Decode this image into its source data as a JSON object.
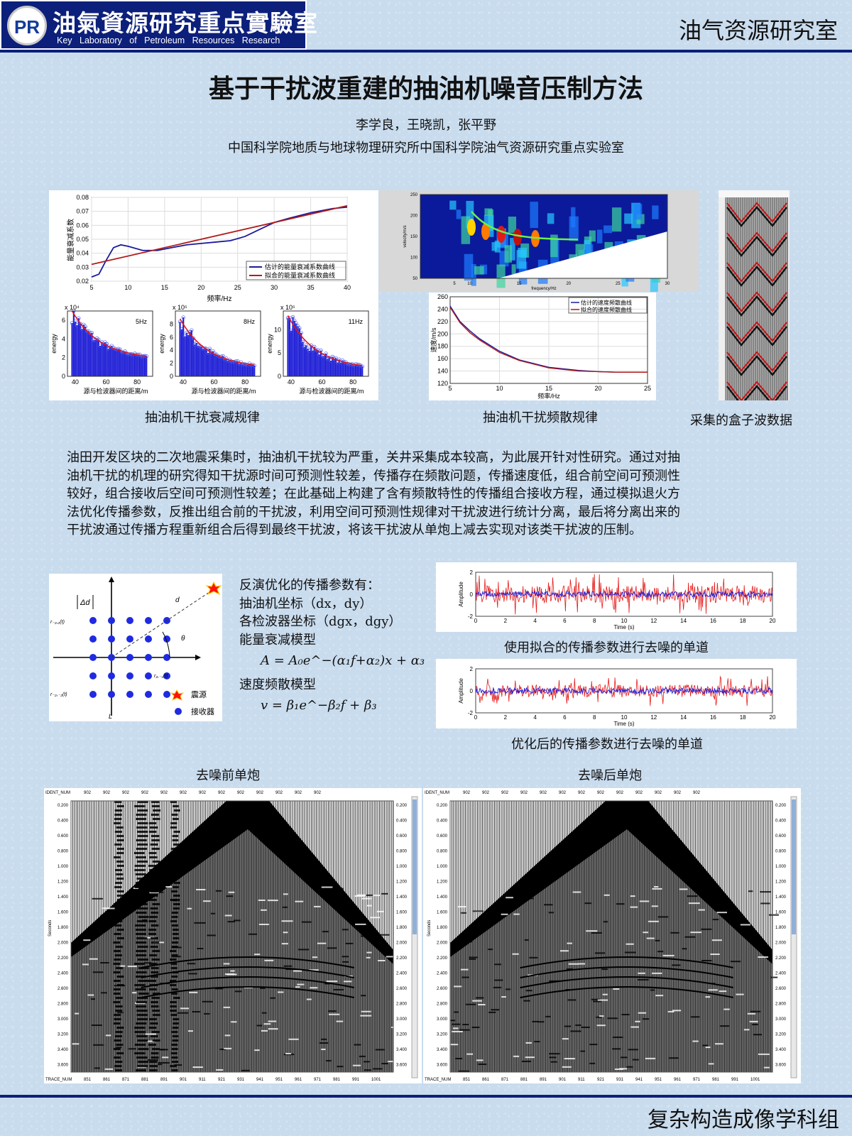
{
  "header": {
    "logo_mark": "PR",
    "logo_cn": "油氣資源研究重点實驗室",
    "logo_en": "Key Laboratory of Petroleum Resources Research",
    "org": "油气资源研究室"
  },
  "paper": {
    "title": "基于干扰波重建的抽油机噪音压制方法",
    "authors": "李学良，王晓凯，张平野",
    "affiliation": "中国科学院地质与地球物理研究所中国科学院油气资源研究重点实验室"
  },
  "figures": {
    "attenuation_caption": "抽油机干扰衰减规律",
    "dispersion_caption": "抽油机干扰频散规律",
    "box_caption": "采集的盒子波数据",
    "denoise1_caption": "使用拟合的传播参数进行去噪的单道",
    "denoise2_caption": "优化后的传播参数进行去噪的单道",
    "before_caption": "去噪前单炮",
    "after_caption": "去噪后单炮",
    "legend_source": "震源",
    "legend_receiver": "接收器",
    "geom_delta": "Δd",
    "geom_d": "d",
    "geom_theta": "θ",
    "geom_L": "L",
    "geom_r1": "r₋₂,₂(t)",
    "geom_r2": "r₂,₋₁(t)",
    "geom_r3": "r₋₂,₋₂(t)"
  },
  "abstract": [
    "油田开发区块的二次地震采集时，抽油机干扰较为严重，关井采集成本较高，为此展开针对性研究。通过对抽",
    "油机干扰的机理的研究得知干扰源时间可预测性较差，传播存在频散问题，传播速度低，组合前空间可预测性",
    "较好，组合接收后空间可预测性较差；在此基础上构建了含有频散特性的传播组合接收方程，通过模拟退火方",
    "法优化传播参数，反推出组合前的干扰波，利用空间可预测性规律对干扰波进行统计分离，最后将分离出来的",
    "干扰波通过传播方程重新组合后得到最终干扰波，将该干扰波从单炮上减去实现对该类干扰波的压制。"
  ],
  "params": {
    "intro": "反演优化的传播参数有：",
    "p1": "抽油机坐标（dx，dy）",
    "p2": "各检波器坐标（dgx，dgy）",
    "p3": "能量衰减模型",
    "f1": "A = A₀e^−(α₁f+α₂)x + α₃",
    "p4": "速度频散模型",
    "f2": "v = β₁e^−β₂f + β₃"
  },
  "footer": {
    "group": "复杂构造成像学科组"
  },
  "chart_data": [
    {
      "type": "line",
      "ylabel": "能量衰减系数",
      "xlabel": "频率/Hz",
      "xlim": [
        5,
        40
      ],
      "ylim": [
        0.02,
        0.08
      ],
      "x_ticks": [
        5,
        10,
        15,
        20,
        25,
        30,
        35,
        40
      ],
      "y_ticks": [
        0.02,
        0.03,
        0.04,
        0.05,
        0.06,
        0.07,
        0.08
      ],
      "legend": "bottom-right",
      "series": [
        {
          "name": "估计的能量衰减系数曲线",
          "color": "#1a1a9c",
          "x": [
            5,
            6,
            7,
            8,
            9,
            10,
            12,
            14,
            16,
            18,
            20,
            22,
            24,
            26,
            28,
            30,
            32,
            35,
            38,
            40
          ],
          "y": [
            0.023,
            0.025,
            0.035,
            0.044,
            0.046,
            0.045,
            0.042,
            0.042,
            0.044,
            0.046,
            0.047,
            0.048,
            0.049,
            0.052,
            0.057,
            0.062,
            0.065,
            0.069,
            0.072,
            0.073
          ]
        },
        {
          "name": "拟合的能量衰减系数曲线",
          "color": "#b01c1c",
          "x": [
            5,
            40
          ],
          "y": [
            0.032,
            0.074
          ]
        }
      ]
    },
    {
      "type": "bar",
      "xlabel": "源与检波器间的距离/m",
      "ylabel": "energy",
      "label": "5Hz",
      "exponent": "x 10⁴",
      "ylim": [
        0,
        7
      ],
      "y_ticks": [
        0,
        2,
        4,
        6
      ],
      "x_ticks": [
        40,
        60,
        80
      ],
      "start": 7,
      "end": 1.8
    },
    {
      "type": "bar",
      "xlabel": "源与检波器间的距离/m",
      "ylabel": "energy",
      "label": "8Hz",
      "exponent": "x 10⁵",
      "ylim": [
        0,
        10
      ],
      "y_ticks": [
        0,
        2,
        4,
        6,
        8
      ],
      "x_ticks": [
        40,
        60,
        80
      ],
      "start": 8.8,
      "end": 1.2
    },
    {
      "type": "bar",
      "xlabel": "源与检波器间的距离/m",
      "ylabel": "energy",
      "label": "11Hz",
      "exponent": "x 10⁵",
      "ylim": [
        0,
        14
      ],
      "y_ticks": [
        0,
        5,
        10
      ],
      "x_ticks": [
        40,
        60,
        80
      ],
      "start": 13,
      "end": 1.5
    },
    {
      "type": "line",
      "ylabel": "速度/m/s",
      "xlabel": "频率/Hz",
      "xlim": [
        5,
        25
      ],
      "ylim": [
        120,
        260
      ],
      "x_ticks": [
        5,
        10,
        15,
        20,
        25
      ],
      "y_ticks": [
        120,
        140,
        160,
        180,
        200,
        220,
        240,
        260
      ],
      "legend": "top-right",
      "series": [
        {
          "name": "估计的速度频散曲线",
          "color": "#1a1a9c",
          "x": [
            5,
            6,
            7,
            8,
            10,
            12,
            15,
            18,
            20,
            22,
            25
          ],
          "y": [
            245,
            220,
            205,
            192,
            172,
            158,
            146,
            141,
            139,
            138,
            138
          ]
        },
        {
          "name": "拟合的速度频散曲线",
          "color": "#b01c1c",
          "x": [
            5,
            6,
            7,
            8,
            10,
            12,
            15,
            18,
            20,
            22,
            25
          ],
          "y": [
            243,
            218,
            202,
            190,
            170,
            157,
            145,
            140,
            139,
            138,
            138
          ]
        }
      ]
    },
    {
      "type": "heatmap",
      "ylabel": "velocity/m/s",
      "xlabel": "frequency/Hz",
      "x_ticks": [
        5,
        10,
        15,
        20,
        25,
        30
      ],
      "y_ticks": [
        50,
        100,
        150,
        200,
        250
      ]
    },
    {
      "type": "line",
      "ylabel": "Amplitude",
      "xlabel": "Time (s)",
      "xlim": [
        0,
        20
      ],
      "ylim": [
        -2,
        2
      ],
      "x_ticks": [
        0,
        2,
        4,
        6,
        8,
        10,
        12,
        14,
        16,
        18,
        20
      ],
      "y_ticks": [
        -2,
        0,
        2
      ]
    },
    {
      "type": "line",
      "ylabel": "Amplitude",
      "xlabel": "Time (s)",
      "xlim": [
        0,
        20
      ],
      "ylim": [
        -2,
        2
      ],
      "x_ticks": [
        0,
        2,
        4,
        6,
        8,
        10,
        12,
        14,
        16,
        18,
        20
      ],
      "y_ticks": [
        -2,
        0,
        2
      ]
    }
  ],
  "seismic": {
    "header_left": "IDENT_NUM",
    "header_val": "902",
    "trace_label": "TRACE_NUM",
    "axis_label": "Seconds",
    "times": [
      "0.200",
      "0.400",
      "0.600",
      "0.800",
      "1.000",
      "1.200",
      "1.400",
      "1.600",
      "1.800",
      "2.000",
      "2.200",
      "2.400",
      "2.600",
      "2.800",
      "3.000",
      "3.200",
      "3.400",
      "3.600"
    ],
    "traces": [
      "851",
      "861",
      "871",
      "881",
      "891",
      "901",
      "911",
      "921",
      "931",
      "941",
      "951",
      "961",
      "971",
      "981",
      "991",
      "1001"
    ]
  }
}
